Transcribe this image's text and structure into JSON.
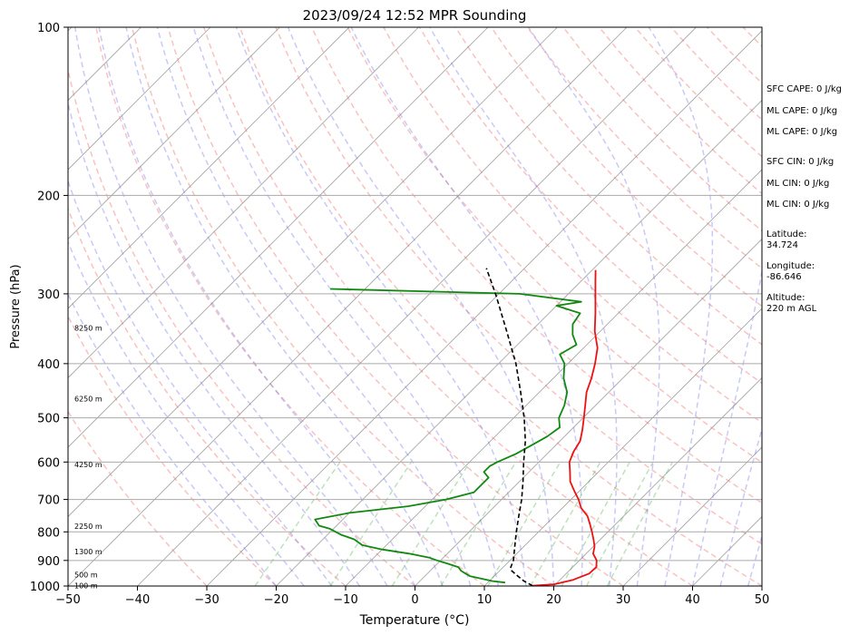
{
  "chart_data": {
    "type": "line",
    "title": "2023/09/24 12:52 MPR Sounding",
    "xlabel": "Temperature (°C)",
    "ylabel": "Pressure (hPa)",
    "xlim": [
      -50,
      50
    ],
    "ylim": [
      1000,
      100
    ],
    "y_scale": "log",
    "grid": true,
    "x_ticks": [
      "−50",
      "−40",
      "−30",
      "−20",
      "−10",
      "0",
      "10",
      "20",
      "30",
      "40",
      "50"
    ],
    "y_ticks": [
      "100",
      "200",
      "300",
      "400",
      "500",
      "600",
      "700",
      "800",
      "900",
      "1000"
    ],
    "series": [
      {
        "key": "temperature",
        "color": "#ee1111",
        "style": "solid",
        "points": [
          [
            999,
            16.9
          ],
          [
            993,
            19.8
          ],
          [
            975,
            21.9
          ],
          [
            950,
            23.3
          ],
          [
            925,
            23.4
          ],
          [
            900,
            22.5
          ],
          [
            875,
            21.0
          ],
          [
            850,
            20.2
          ],
          [
            825,
            19.0
          ],
          [
            800,
            17.7
          ],
          [
            775,
            16.3
          ],
          [
            750,
            14.8
          ],
          [
            725,
            12.7
          ],
          [
            700,
            11.1
          ],
          [
            675,
            9.2
          ],
          [
            650,
            7.3
          ],
          [
            625,
            5.9
          ],
          [
            600,
            4.4
          ],
          [
            575,
            3.5
          ],
          [
            550,
            2.9
          ],
          [
            525,
            1.6
          ],
          [
            500,
            0.1
          ],
          [
            475,
            -1.5
          ],
          [
            450,
            -3.2
          ],
          [
            425,
            -4.5
          ],
          [
            400,
            -6.1
          ],
          [
            375,
            -8.0
          ],
          [
            350,
            -10.8
          ],
          [
            325,
            -13.3
          ],
          [
            300,
            -16.1
          ],
          [
            285,
            -17.9
          ],
          [
            272,
            -19.5
          ]
        ]
      },
      {
        "key": "dewpoint",
        "color": "#118811",
        "style": "solid",
        "points": [
          [
            986,
            12.5
          ],
          [
            980,
            10.5
          ],
          [
            970,
            8.5
          ],
          [
            960,
            6.5
          ],
          [
            950,
            5.5
          ],
          [
            940,
            4.5
          ],
          [
            925,
            3.5
          ],
          [
            912,
            1.5
          ],
          [
            900,
            -0.5
          ],
          [
            890,
            -2.0
          ],
          [
            875,
            -5.5
          ],
          [
            860,
            -10.0
          ],
          [
            845,
            -13.5
          ],
          [
            825,
            -15.5
          ],
          [
            810,
            -18.0
          ],
          [
            790,
            -20.5
          ],
          [
            780,
            -22.5
          ],
          [
            760,
            -24.0
          ],
          [
            740,
            -20.0
          ],
          [
            720,
            -12.5
          ],
          [
            700,
            -8.0
          ],
          [
            680,
            -5.0
          ],
          [
            660,
            -5.0
          ],
          [
            640,
            -5.0
          ],
          [
            625,
            -6.5
          ],
          [
            610,
            -6.5
          ],
          [
            600,
            -6.0
          ],
          [
            580,
            -4.5
          ],
          [
            560,
            -3.5
          ],
          [
            540,
            -2.5
          ],
          [
            520,
            -2.0
          ],
          [
            500,
            -3.5
          ],
          [
            475,
            -4.5
          ],
          [
            450,
            -6.0
          ],
          [
            425,
            -8.5
          ],
          [
            400,
            -10.5
          ],
          [
            385,
            -12.5
          ],
          [
            370,
            -11.5
          ],
          [
            355,
            -13.5
          ],
          [
            340,
            -15.0
          ],
          [
            325,
            -15.5
          ],
          [
            315,
            -20.0
          ],
          [
            310,
            -17.0
          ],
          [
            300,
            -27.0
          ],
          [
            294,
            -55.0
          ]
        ]
      },
      {
        "key": "parcel",
        "color": "#000000",
        "style": "dashed",
        "points": [
          [
            999,
            16.9
          ],
          [
            980,
            15.0
          ],
          [
            960,
            13.4
          ],
          [
            940,
            11.8
          ],
          [
            930,
            11.2
          ],
          [
            900,
            10.5
          ],
          [
            850,
            8.7
          ],
          [
            800,
            6.8
          ],
          [
            750,
            4.9
          ],
          [
            700,
            2.9
          ],
          [
            650,
            0.5
          ],
          [
            600,
            -2.2
          ],
          [
            550,
            -5.0
          ],
          [
            500,
            -8.5
          ],
          [
            450,
            -12.7
          ],
          [
            400,
            -17.5
          ],
          [
            350,
            -23.5
          ],
          [
            300,
            -30.5
          ],
          [
            270,
            -35.5
          ]
        ]
      }
    ],
    "height_labels": [
      "100 m",
      "500 m",
      "1300 m",
      "2250 m",
      "4250 m",
      "6250 m",
      "8250 m"
    ],
    "height_label_pressures": [
      998,
      955,
      868,
      782,
      606,
      462,
      345
    ],
    "stats": [
      "SFC CAPE: 0 J/kg",
      "ML CAPE: 0 J/kg",
      "ML CAPE: 0 J/kg",
      "SFC CIN: 0 J/kg",
      "ML CIN: 0 J/kg",
      "ML CIN: 0 J/kg",
      "Latitude:",
      "34.724",
      "Longitude:",
      "-86.646",
      "Altitude:",
      "220 m AGL"
    ],
    "colors": {
      "dry_adiabat": "#ee6666",
      "moist_adiabat": "#7777ee",
      "mixing_ratio": "#44aa44",
      "isotherm": "#555555",
      "isobar": "#aaaaaa"
    }
  }
}
